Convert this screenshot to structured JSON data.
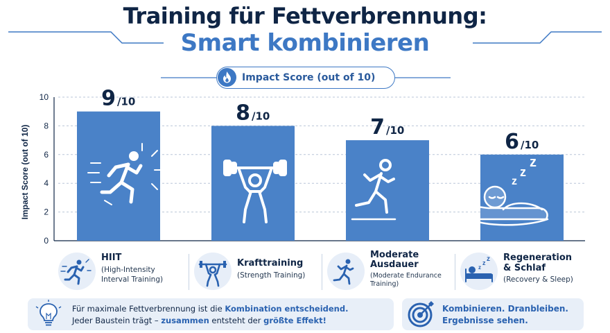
{
  "title_line1": "Training für Fettverbrennung:",
  "title_line2": "Smart kombinieren",
  "impact_pill": "Impact Score (out of 10)",
  "chart_data": {
    "type": "bar",
    "categories": [
      "HIIT",
      "Krafttraining",
      "Moderate Ausdauer",
      "Regeneration & Schlaf"
    ],
    "values": [
      9,
      8,
      7,
      6
    ],
    "value_labels": [
      "9",
      "8",
      "7",
      "6"
    ],
    "value_suffix": "/10",
    "ylabel": "Impact Score (out of 10)",
    "ylim": [
      0,
      10
    ],
    "yticks": [
      "0",
      "2",
      "4",
      "6",
      "8",
      "10"
    ],
    "grid": true,
    "bar_color": "#4a82c8"
  },
  "cards": [
    {
      "name": "HIIT",
      "sub1": "(High-Intensity",
      "sub2": "Interval Training)",
      "icon": "sprinter-icon"
    },
    {
      "name": "Krafttraining",
      "sub1": "(Strength Training)",
      "icon": "weightlifter-icon"
    },
    {
      "name1": "Moderate",
      "name2": "Ausdauer",
      "sub1": "(Moderate Endurance",
      "sub2": "Training)",
      "icon": "runner-icon"
    },
    {
      "name1": "Regeneration",
      "name2": "& Schlaf",
      "sub1": "(Recovery & Sleep)",
      "icon": "sleep-icon"
    }
  ],
  "footer": {
    "line1_a": "Für maximale Fettverbrennung ist die ",
    "line1_b": "Kombination entscheidend.",
    "line2_a": "Jeder Baustein trägt – ",
    "line2_b": "zusammen",
    "line2_c": " entsteht der ",
    "line2_d": "größte Effekt!",
    "right_line1": "Kombinieren. Dranbleiben.",
    "right_line2": "Ergebnisse sehen."
  },
  "colors": {
    "navy": "#0f2545",
    "blue": "#3d78c4",
    "bar": "#4a82c8",
    "panel": "#e8eff8"
  }
}
